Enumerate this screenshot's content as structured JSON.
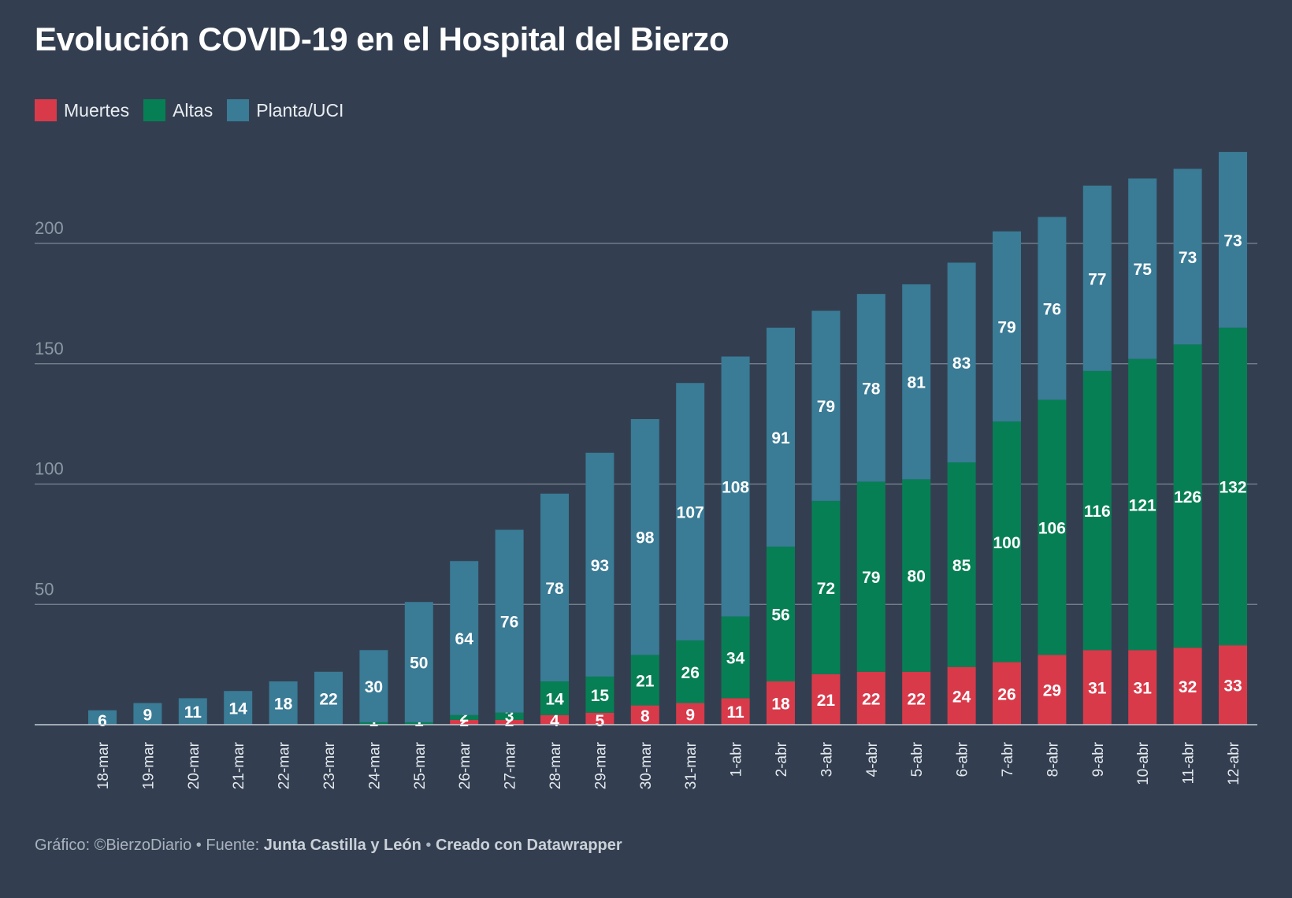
{
  "title": "Evolución COVID-19 en el Hospital del Bierzo",
  "footer": {
    "credit": "Gráfico: ©BierzoDiario",
    "sep1": " • ",
    "source_label": "Fuente: ",
    "source": "Junta Castilla y León",
    "sep2": " • ",
    "tool": "Creado con Datawrapper"
  },
  "colors": {
    "background": "#333f50",
    "muertes": "#d83a4a",
    "altas": "#077f55",
    "planta": "#3a7b96",
    "grid": "#7d8794",
    "tick": "#8e98a4"
  },
  "chart_data": {
    "type": "bar",
    "stacked": true,
    "title": "Evolución COVID-19 en el Hospital del Bierzo",
    "xlabel": "",
    "ylabel": "",
    "ylim": [
      0,
      240
    ],
    "yticks": [
      50,
      100,
      150,
      200
    ],
    "grid": true,
    "legend_position": "top-left",
    "categories": [
      "18-mar",
      "19-mar",
      "20-mar",
      "21-mar",
      "22-mar",
      "23-mar",
      "24-mar",
      "25-mar",
      "26-mar",
      "27-mar",
      "28-mar",
      "29-mar",
      "30-mar",
      "31-mar",
      "1-abr",
      "2-abr",
      "3-abr",
      "4-abr",
      "5-abr",
      "6-abr",
      "7-abr",
      "8-abr",
      "9-abr",
      "10-abr",
      "11-abr",
      "12-abr"
    ],
    "series": [
      {
        "name": "Muertes",
        "color": "#d83a4a",
        "values": [
          0,
          0,
          0,
          0,
          0,
          0,
          0,
          0,
          2,
          2,
          4,
          5,
          8,
          9,
          11,
          18,
          21,
          22,
          22,
          24,
          26,
          29,
          31,
          31,
          32,
          33
        ]
      },
      {
        "name": "Altas",
        "color": "#077f55",
        "values": [
          0,
          0,
          0,
          0,
          0,
          0,
          1,
          1,
          2,
          3,
          14,
          15,
          21,
          26,
          34,
          56,
          72,
          79,
          80,
          85,
          100,
          106,
          116,
          121,
          126,
          132
        ]
      },
      {
        "name": "Planta/UCI",
        "color": "#3a7b96",
        "values": [
          6,
          9,
          11,
          14,
          18,
          22,
          30,
          50,
          64,
          76,
          78,
          93,
          98,
          107,
          108,
          91,
          79,
          78,
          81,
          83,
          79,
          76,
          77,
          75,
          73,
          73
        ]
      }
    ]
  }
}
